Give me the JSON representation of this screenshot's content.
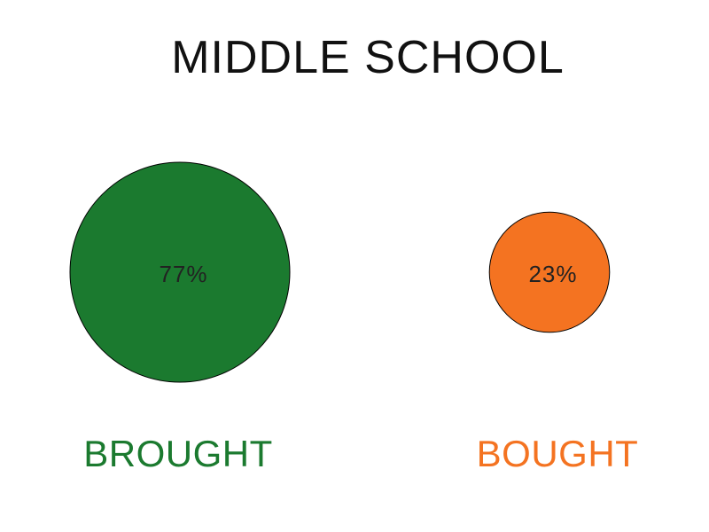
{
  "chart_data": {
    "type": "bubble",
    "title": "MIDDLE SCHOOL",
    "categories": [
      "BROUGHT",
      "BOUGHT"
    ],
    "values": [
      77,
      23
    ],
    "value_labels": [
      "77%",
      "23%"
    ],
    "unit": "%",
    "colors": [
      "#1b7a2f",
      "#f47321"
    ],
    "label_colors": [
      "#1b7a2f",
      "#f47321"
    ],
    "value_text_color": "#222222",
    "title_color": "#111111",
    "outline_color": "#000000",
    "grid": false,
    "legend": "none"
  }
}
